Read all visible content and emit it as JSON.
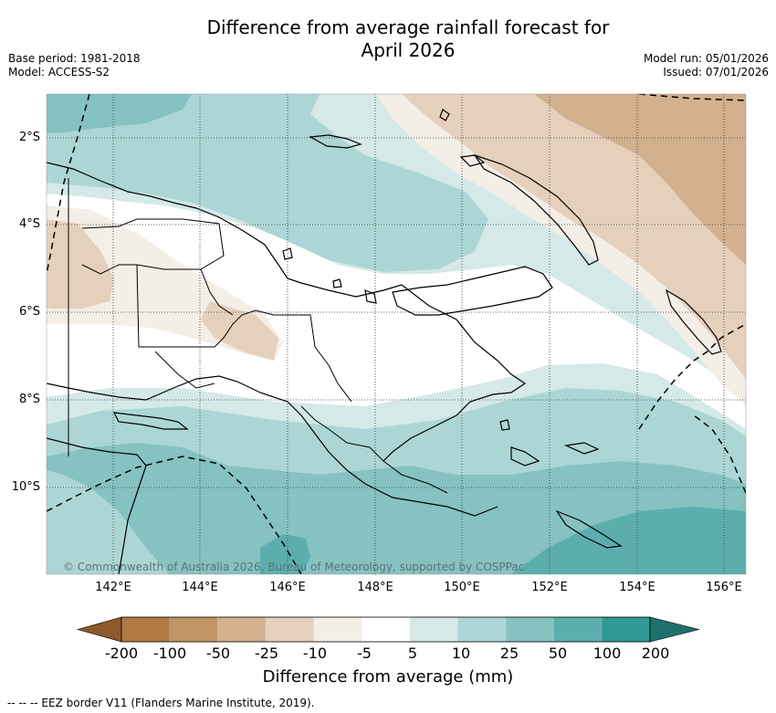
{
  "title": {
    "line1": "Difference from average rainfall forecast for",
    "line2": "April 2026"
  },
  "meta": {
    "base_period": "Base period: 1981-2018",
    "model": "Model: ACCESS-S2",
    "model_run": "Model run: 05/01/2026",
    "issued": "Issued: 07/01/2026"
  },
  "map": {
    "attribution": "© Commonwealth of Australia 2026, Bureau of Meteorology, supported by COSPPac",
    "lat_labels": [
      "2°S",
      "4°S",
      "6°S",
      "8°S",
      "10°S"
    ],
    "lon_labels": [
      "142°E",
      "144°E",
      "146°E",
      "148°E",
      "150°E",
      "152°E",
      "154°E",
      "156°E"
    ]
  },
  "legend": {
    "tick_labels": [
      "-200",
      "-100",
      "-50",
      "-25",
      "-10",
      "-5",
      "5",
      "10",
      "25",
      "50",
      "100",
      "200"
    ],
    "title": "Difference from average (mm)",
    "colors": {
      "below_min": "#8c5a2b",
      "bins": [
        "#b07a45",
        "#c19566",
        "#d3b08e",
        "#e5d0bc",
        "#f3eee6",
        "#ffffff",
        "#d4e9e8",
        "#acd6d5",
        "#85c2c1",
        "#5caeae",
        "#2e9995"
      ],
      "above_max": "#1f6f6c"
    }
  },
  "footer": {
    "eez_note": "--  --  -- EEZ border V11 (Flanders Marine Institute, 2019)."
  }
}
